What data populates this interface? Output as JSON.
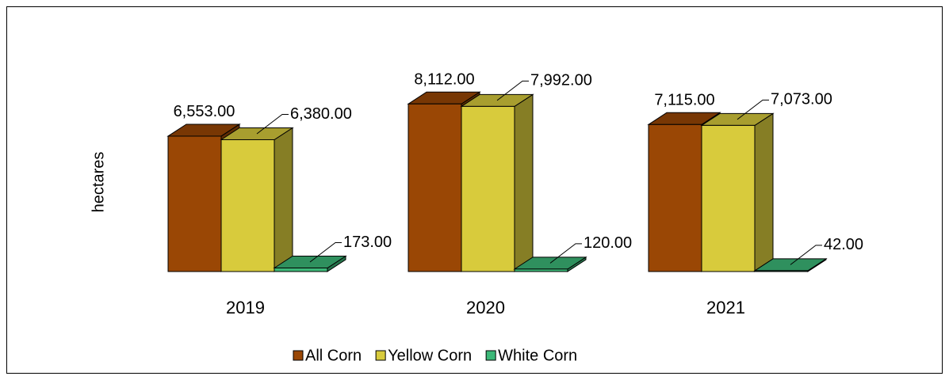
{
  "chart_data": {
    "type": "bar3d",
    "y_label": "hectares",
    "categories": [
      "2019",
      "2020",
      "2021"
    ],
    "series": [
      {
        "name": "All Corn",
        "color": "#9a4705",
        "values": [
          6553,
          8112,
          7115
        ],
        "value_labels": [
          "6,553.00",
          "8,112.00",
          "7,115.00"
        ]
      },
      {
        "name": "Yellow Corn",
        "color": "#d8cb3c",
        "values": [
          6380,
          7992,
          7073
        ],
        "value_labels": [
          "6,380.00",
          "7,992.00",
          "7,073.00"
        ]
      },
      {
        "name": "White Corn",
        "color": "#3cb878",
        "values": [
          173,
          120,
          42
        ],
        "value_labels": [
          "173.00",
          "120.00",
          "42.00"
        ]
      }
    ],
    "legend": "bottom"
  }
}
